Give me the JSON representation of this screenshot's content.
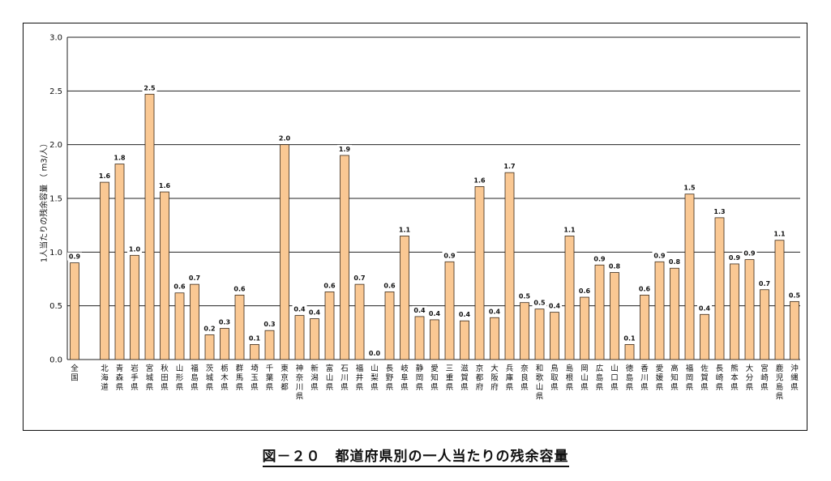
{
  "chart_data": {
    "type": "bar",
    "ylabel": "1人当たりの残余容量 （ m3/人）",
    "ylim": [
      0,
      3.0
    ],
    "yticks": [
      "0.0",
      "0.5",
      "1.0",
      "1.5",
      "2.0",
      "2.5",
      "3.0"
    ],
    "grid": true,
    "categories": [
      "全国",
      "北海道",
      "青森県",
      "岩手県",
      "宮城県",
      "秋田県",
      "山形県",
      "福島県",
      "茨城県",
      "栃木県",
      "群馬県",
      "埼玉県",
      "千葉県",
      "東京都",
      "神奈川県",
      "新潟県",
      "富山県",
      "石川県",
      "福井県",
      "山梨県",
      "長野県",
      "岐阜県",
      "静岡県",
      "愛知県",
      "三重県",
      "滋賀県",
      "京都府",
      "大阪府",
      "兵庫県",
      "奈良県",
      "和歌山県",
      "鳥取県",
      "島根県",
      "岡山県",
      "広島県",
      "山口県",
      "徳島県",
      "香川県",
      "愛媛県",
      "高知県",
      "福岡県",
      "佐賀県",
      "長崎県",
      "熊本県",
      "大分県",
      "宮崎県",
      "鹿児島県",
      "沖縄県"
    ],
    "values": [
      0.9,
      1.65,
      1.82,
      0.97,
      2.47,
      1.56,
      0.62,
      0.7,
      0.23,
      0.29,
      0.6,
      0.14,
      0.27,
      2.0,
      0.41,
      0.38,
      0.63,
      1.9,
      0.7,
      0.0,
      0.63,
      1.15,
      0.4,
      0.37,
      0.91,
      0.36,
      1.61,
      0.39,
      1.74,
      0.53,
      0.47,
      0.44,
      1.15,
      0.58,
      0.88,
      0.81,
      0.14,
      0.6,
      0.91,
      0.85,
      1.54,
      0.42,
      1.32,
      0.89,
      0.93,
      0.65,
      1.11,
      0.54
    ],
    "labels": [
      "0.9",
      "1.6",
      "1.8",
      "1.0",
      "2.5",
      "1.6",
      "0.6",
      "0.7",
      "0.2",
      "0.3",
      "0.6",
      "0.1",
      "0.3",
      "2.0",
      "0.4",
      "0.4",
      "0.6",
      "1.9",
      "0.7",
      "0.0",
      "0.6",
      "1.1",
      "0.4",
      "0.4",
      "0.9",
      "0.4",
      "1.6",
      "0.4",
      "1.7",
      "0.5",
      "0.5",
      "0.4",
      "1.1",
      "0.6",
      "0.9",
      "0.8",
      "0.1",
      "0.6",
      "0.9",
      "0.8",
      "1.5",
      "0.4",
      "1.3",
      "0.9",
      "0.9",
      "0.7",
      "1.1",
      "0.5"
    ],
    "bar_color": "#fac893",
    "bar_stroke": "#3a2a1a"
  },
  "caption": "図－２０　都道府県別の一人当たりの残余容量"
}
